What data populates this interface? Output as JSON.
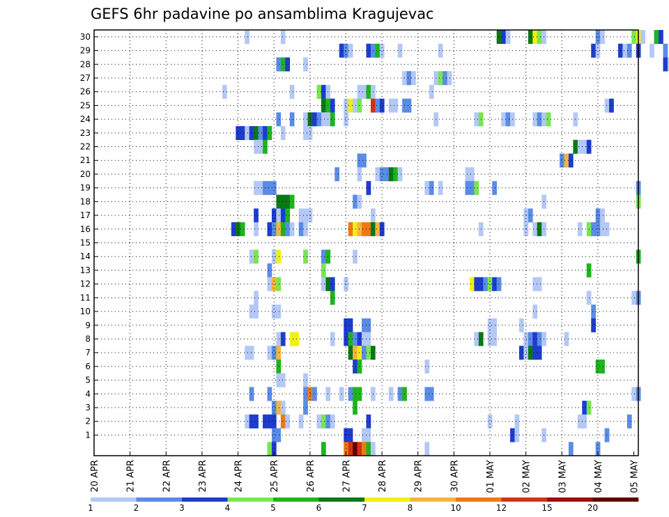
{
  "chart_data": {
    "type": "heatmap",
    "title": "GEFS 6hr padavine po ansamblima Kragujevac",
    "xlabel": "",
    "ylabel": "",
    "grid": true,
    "x_ticks": [
      "20 APR",
      "21 APR",
      "22 APR",
      "23 APR",
      "24 APR",
      "25 APR",
      "26 APR",
      "27 APR",
      "28 APR",
      "29 APR",
      "30 APR",
      "01 MAY",
      "02 MAY",
      "03 MAY",
      "04 MAY",
      "05 MAY"
    ],
    "y_ticks": [
      1,
      2,
      3,
      4,
      5,
      6,
      7,
      8,
      9,
      10,
      11,
      12,
      13,
      14,
      15,
      16,
      17,
      18,
      19,
      20,
      21,
      22,
      23,
      24,
      25,
      26,
      27,
      28,
      29,
      30
    ],
    "colorbar": {
      "levels": [
        "1",
        "2",
        "3",
        "4",
        "5",
        "6",
        "7",
        "8",
        "10",
        "12",
        "15",
        "20"
      ],
      "colors": [
        "#b4c8f5",
        "#5a8ce6",
        "#1e3ccd",
        "#78e650",
        "#1eb41e",
        "#0a7814",
        "#f0f014",
        "#f5b43c",
        "#f07814",
        "#d23214",
        "#a00a0a",
        "#640000"
      ]
    },
    "cells": [
      [
        30,
        34,
        1
      ],
      [
        30,
        42,
        1
      ],
      [
        30,
        90,
        6
      ],
      [
        30,
        91,
        3
      ],
      [
        30,
        92,
        1
      ],
      [
        30,
        97,
        6
      ],
      [
        30,
        98,
        7
      ],
      [
        30,
        99,
        4
      ],
      [
        30,
        100,
        1
      ],
      [
        30,
        112,
        2
      ],
      [
        30,
        113,
        1
      ],
      [
        30,
        120,
        4
      ],
      [
        30,
        121,
        7
      ],
      [
        30,
        122,
        1
      ],
      [
        30,
        125,
        5
      ],
      [
        30,
        126,
        3
      ],
      [
        29,
        55,
        3
      ],
      [
        29,
        56,
        2
      ],
      [
        29,
        57,
        1
      ],
      [
        29,
        61,
        3
      ],
      [
        29,
        62,
        2
      ],
      [
        29,
        63,
        5
      ],
      [
        29,
        64,
        1
      ],
      [
        29,
        68,
        1
      ],
      [
        29,
        77,
        1
      ],
      [
        29,
        111,
        3
      ],
      [
        29,
        112,
        1
      ],
      [
        29,
        117,
        3
      ],
      [
        29,
        118,
        1
      ],
      [
        29,
        119,
        2
      ],
      [
        29,
        121,
        3
      ],
      [
        29,
        124,
        1
      ],
      [
        29,
        127,
        2
      ],
      [
        29,
        136,
        1
      ],
      [
        29,
        137,
        2
      ],
      [
        29,
        138,
        4
      ],
      [
        28,
        41,
        2
      ],
      [
        28,
        42,
        5
      ],
      [
        28,
        43,
        3
      ],
      [
        28,
        47,
        1
      ],
      [
        28,
        127,
        3
      ],
      [
        28,
        128,
        1
      ],
      [
        28,
        135,
        4
      ],
      [
        28,
        136,
        2
      ],
      [
        28,
        137,
        3
      ],
      [
        28,
        138,
        5
      ],
      [
        28,
        139,
        8
      ],
      [
        27,
        69,
        1
      ],
      [
        27,
        70,
        2
      ],
      [
        27,
        71,
        1
      ],
      [
        27,
        76,
        1
      ],
      [
        27,
        77,
        4
      ],
      [
        27,
        78,
        2
      ],
      [
        27,
        79,
        1
      ],
      [
        26,
        29,
        1
      ],
      [
        26,
        44,
        1
      ],
      [
        26,
        50,
        4
      ],
      [
        26,
        51,
        3
      ],
      [
        26,
        52,
        1
      ],
      [
        26,
        59,
        1
      ],
      [
        26,
        60,
        1
      ],
      [
        26,
        61,
        5
      ],
      [
        26,
        62,
        1
      ],
      [
        26,
        75,
        1
      ],
      [
        25,
        51,
        6
      ],
      [
        25,
        52,
        5
      ],
      [
        25,
        53,
        3
      ],
      [
        25,
        56,
        1
      ],
      [
        25,
        57,
        7
      ],
      [
        25,
        58,
        1
      ],
      [
        25,
        59,
        4
      ],
      [
        25,
        62,
        10
      ],
      [
        25,
        63,
        2
      ],
      [
        25,
        64,
        3
      ],
      [
        25,
        66,
        1
      ],
      [
        25,
        67,
        1
      ],
      [
        25,
        69,
        2
      ],
      [
        25,
        70,
        2
      ],
      [
        25,
        114,
        1
      ],
      [
        25,
        115,
        3
      ],
      [
        24,
        41,
        2
      ],
      [
        24,
        44,
        2
      ],
      [
        24,
        47,
        1
      ],
      [
        24,
        48,
        6
      ],
      [
        24,
        49,
        3
      ],
      [
        24,
        50,
        2
      ],
      [
        24,
        51,
        1
      ],
      [
        24,
        52,
        1
      ],
      [
        24,
        53,
        5
      ],
      [
        24,
        56,
        1
      ],
      [
        24,
        76,
        1
      ],
      [
        24,
        85,
        1
      ],
      [
        24,
        86,
        4
      ],
      [
        24,
        91,
        1
      ],
      [
        24,
        92,
        2
      ],
      [
        24,
        93,
        1
      ],
      [
        24,
        98,
        1
      ],
      [
        24,
        99,
        2
      ],
      [
        24,
        100,
        1
      ],
      [
        24,
        101,
        4
      ],
      [
        24,
        107,
        1
      ],
      [
        23,
        32,
        3
      ],
      [
        23,
        33,
        3
      ],
      [
        23,
        34,
        1
      ],
      [
        23,
        35,
        3
      ],
      [
        23,
        36,
        6
      ],
      [
        23,
        37,
        2
      ],
      [
        23,
        38,
        3
      ],
      [
        23,
        39,
        5
      ],
      [
        23,
        42,
        1
      ],
      [
        23,
        47,
        1
      ],
      [
        23,
        48,
        1
      ],
      [
        22,
        36,
        1
      ],
      [
        22,
        37,
        1
      ],
      [
        22,
        38,
        5
      ],
      [
        22,
        107,
        6
      ],
      [
        22,
        108,
        1
      ],
      [
        22,
        109,
        1
      ],
      [
        22,
        110,
        3
      ],
      [
        21,
        59,
        2
      ],
      [
        21,
        60,
        2
      ],
      [
        21,
        104,
        2
      ],
      [
        21,
        105,
        8
      ],
      [
        21,
        106,
        3
      ],
      [
        20,
        54,
        2
      ],
      [
        20,
        59,
        1
      ],
      [
        20,
        63,
        1
      ],
      [
        20,
        64,
        2
      ],
      [
        20,
        65,
        2
      ],
      [
        20,
        66,
        6
      ],
      [
        20,
        67,
        5
      ],
      [
        20,
        68,
        1
      ],
      [
        20,
        83,
        1
      ],
      [
        20,
        84,
        1
      ],
      [
        19,
        36,
        1
      ],
      [
        19,
        37,
        1
      ],
      [
        19,
        38,
        2
      ],
      [
        19,
        39,
        2
      ],
      [
        19,
        40,
        2
      ],
      [
        19,
        61,
        3
      ],
      [
        19,
        74,
        1
      ],
      [
        19,
        75,
        2
      ],
      [
        19,
        77,
        1
      ],
      [
        19,
        83,
        2
      ],
      [
        19,
        84,
        2
      ],
      [
        19,
        85,
        4
      ],
      [
        19,
        89,
        2
      ],
      [
        19,
        121,
        2
      ],
      [
        18,
        41,
        6
      ],
      [
        18,
        42,
        6
      ],
      [
        18,
        43,
        6
      ],
      [
        18,
        44,
        5
      ],
      [
        18,
        58,
        2
      ],
      [
        18,
        59,
        1
      ],
      [
        18,
        100,
        1
      ],
      [
        18,
        121,
        4
      ],
      [
        17,
        36,
        3
      ],
      [
        17,
        40,
        3
      ],
      [
        17,
        41,
        1
      ],
      [
        17,
        42,
        3
      ],
      [
        17,
        43,
        5
      ],
      [
        17,
        46,
        1
      ],
      [
        17,
        47,
        1
      ],
      [
        17,
        48,
        1
      ],
      [
        17,
        62,
        1
      ],
      [
        17,
        96,
        1
      ],
      [
        17,
        97,
        2
      ],
      [
        17,
        112,
        2
      ],
      [
        17,
        113,
        1
      ],
      [
        16,
        31,
        3
      ],
      [
        16,
        32,
        6
      ],
      [
        16,
        33,
        5
      ],
      [
        16,
        36,
        1
      ],
      [
        16,
        39,
        3
      ],
      [
        16,
        40,
        2
      ],
      [
        16,
        41,
        8
      ],
      [
        16,
        42,
        5
      ],
      [
        16,
        43,
        2
      ],
      [
        16,
        44,
        1
      ],
      [
        16,
        46,
        2
      ],
      [
        16,
        47,
        1
      ],
      [
        16,
        57,
        9
      ],
      [
        16,
        58,
        7
      ],
      [
        16,
        59,
        8
      ],
      [
        16,
        60,
        9
      ],
      [
        16,
        61,
        9
      ],
      [
        16,
        62,
        6
      ],
      [
        16,
        63,
        8
      ],
      [
        16,
        64,
        3
      ],
      [
        16,
        86,
        1
      ],
      [
        16,
        96,
        1
      ],
      [
        16,
        98,
        1
      ],
      [
        16,
        99,
        6
      ],
      [
        16,
        100,
        1
      ],
      [
        16,
        108,
        1
      ],
      [
        16,
        110,
        4
      ],
      [
        16,
        111,
        2
      ],
      [
        16,
        112,
        2
      ],
      [
        16,
        113,
        1
      ],
      [
        16,
        114,
        1
      ],
      [
        14,
        35,
        1
      ],
      [
        14,
        36,
        4
      ],
      [
        14,
        40,
        1
      ],
      [
        14,
        41,
        7
      ],
      [
        14,
        47,
        4
      ],
      [
        14,
        51,
        2
      ],
      [
        14,
        52,
        5
      ],
      [
        14,
        58,
        1
      ],
      [
        14,
        121,
        5
      ],
      [
        13,
        39,
        2
      ],
      [
        13,
        51,
        4
      ],
      [
        13,
        110,
        5
      ],
      [
        12,
        39,
        1
      ],
      [
        12,
        40,
        8
      ],
      [
        12,
        41,
        4
      ],
      [
        12,
        51,
        1
      ],
      [
        12,
        52,
        6
      ],
      [
        12,
        53,
        3
      ],
      [
        12,
        56,
        1
      ],
      [
        12,
        84,
        7
      ],
      [
        12,
        85,
        3
      ],
      [
        12,
        86,
        3
      ],
      [
        12,
        87,
        2
      ],
      [
        12,
        88,
        4
      ],
      [
        12,
        89,
        3
      ],
      [
        12,
        90,
        2
      ],
      [
        12,
        98,
        1
      ],
      [
        12,
        99,
        1
      ],
      [
        11,
        36,
        1
      ],
      [
        11,
        53,
        5
      ],
      [
        11,
        110,
        1
      ],
      [
        11,
        120,
        1
      ],
      [
        11,
        121,
        2
      ],
      [
        10,
        35,
        1
      ],
      [
        10,
        36,
        1
      ],
      [
        10,
        40,
        1
      ],
      [
        10,
        41,
        1
      ],
      [
        10,
        98,
        1
      ],
      [
        10,
        111,
        2
      ],
      [
        9,
        56,
        3
      ],
      [
        9,
        57,
        3
      ],
      [
        9,
        60,
        2
      ],
      [
        9,
        61,
        2
      ],
      [
        9,
        88,
        1
      ],
      [
        9,
        89,
        1
      ],
      [
        9,
        95,
        1
      ],
      [
        9,
        111,
        3
      ],
      [
        8,
        41,
        1
      ],
      [
        8,
        42,
        3
      ],
      [
        8,
        44,
        7
      ],
      [
        8,
        45,
        7
      ],
      [
        8,
        53,
        1
      ],
      [
        8,
        56,
        3
      ],
      [
        8,
        57,
        5
      ],
      [
        8,
        58,
        2
      ],
      [
        8,
        59,
        3
      ],
      [
        8,
        60,
        1
      ],
      [
        8,
        61,
        1
      ],
      [
        8,
        85,
        1
      ],
      [
        8,
        86,
        6
      ],
      [
        8,
        88,
        1
      ],
      [
        8,
        89,
        1
      ],
      [
        8,
        96,
        1
      ],
      [
        8,
        97,
        2
      ],
      [
        8,
        98,
        3
      ],
      [
        8,
        99,
        2
      ],
      [
        8,
        100,
        1
      ],
      [
        8,
        105,
        1
      ],
      [
        7,
        34,
        1
      ],
      [
        7,
        35,
        1
      ],
      [
        7,
        39,
        1
      ],
      [
        7,
        40,
        2
      ],
      [
        7,
        41,
        8
      ],
      [
        7,
        57,
        6
      ],
      [
        7,
        58,
        8
      ],
      [
        7,
        59,
        7
      ],
      [
        7,
        60,
        2
      ],
      [
        7,
        61,
        4
      ],
      [
        7,
        62,
        6
      ],
      [
        7,
        95,
        3
      ],
      [
        7,
        96,
        1
      ],
      [
        7,
        97,
        6
      ],
      [
        7,
        98,
        3
      ],
      [
        7,
        99,
        3
      ],
      [
        6,
        41,
        5
      ],
      [
        6,
        58,
        3
      ],
      [
        6,
        59,
        5
      ],
      [
        6,
        74,
        1
      ],
      [
        6,
        112,
        5
      ],
      [
        6,
        113,
        5
      ],
      [
        5,
        41,
        1
      ],
      [
        5,
        42,
        1
      ],
      [
        5,
        47,
        1
      ],
      [
        4,
        35,
        2
      ],
      [
        4,
        39,
        2
      ],
      [
        4,
        47,
        2
      ],
      [
        4,
        48,
        9
      ],
      [
        4,
        49,
        2
      ],
      [
        4,
        52,
        1
      ],
      [
        4,
        55,
        1
      ],
      [
        4,
        57,
        2
      ],
      [
        4,
        58,
        5
      ],
      [
        4,
        59,
        5
      ],
      [
        4,
        62,
        1
      ],
      [
        4,
        66,
        1
      ],
      [
        4,
        68,
        2
      ],
      [
        4,
        69,
        5
      ],
      [
        4,
        74,
        2
      ],
      [
        4,
        75,
        2
      ],
      [
        4,
        120,
        1
      ],
      [
        4,
        121,
        2
      ],
      [
        3,
        40,
        2
      ],
      [
        3,
        41,
        8
      ],
      [
        3,
        42,
        1
      ],
      [
        3,
        47,
        2
      ],
      [
        3,
        58,
        5
      ],
      [
        3,
        109,
        3
      ],
      [
        3,
        110,
        4
      ],
      [
        2,
        34,
        1
      ],
      [
        2,
        35,
        3
      ],
      [
        2,
        36,
        3
      ],
      [
        2,
        38,
        3
      ],
      [
        2,
        39,
        3
      ],
      [
        2,
        40,
        3
      ],
      [
        2,
        42,
        9
      ],
      [
        2,
        43,
        1
      ],
      [
        2,
        46,
        1
      ],
      [
        2,
        50,
        1
      ],
      [
        2,
        51,
        4
      ],
      [
        2,
        52,
        2
      ],
      [
        2,
        53,
        1
      ],
      [
        2,
        61,
        3
      ],
      [
        2,
        88,
        1
      ],
      [
        2,
        94,
        1
      ],
      [
        2,
        108,
        1
      ],
      [
        2,
        109,
        1
      ],
      [
        2,
        119,
        2
      ],
      [
        1,
        40,
        2
      ],
      [
        1,
        41,
        2
      ],
      [
        1,
        56,
        3
      ],
      [
        1,
        57,
        3
      ],
      [
        1,
        60,
        1
      ],
      [
        1,
        61,
        1
      ],
      [
        1,
        93,
        3
      ],
      [
        1,
        94,
        1
      ],
      [
        1,
        100,
        1
      ],
      [
        1,
        114,
        2
      ],
      [
        0,
        39,
        4
      ],
      [
        0,
        40,
        3
      ],
      [
        0,
        51,
        5
      ],
      [
        0,
        56,
        9
      ],
      [
        0,
        57,
        10
      ],
      [
        0,
        58,
        12
      ],
      [
        0,
        59,
        10
      ],
      [
        0,
        60,
        9
      ],
      [
        0,
        61,
        5
      ],
      [
        0,
        62,
        1
      ],
      [
        0,
        74,
        1
      ],
      [
        0,
        106,
        2
      ],
      [
        0,
        112,
        2
      ]
    ]
  }
}
